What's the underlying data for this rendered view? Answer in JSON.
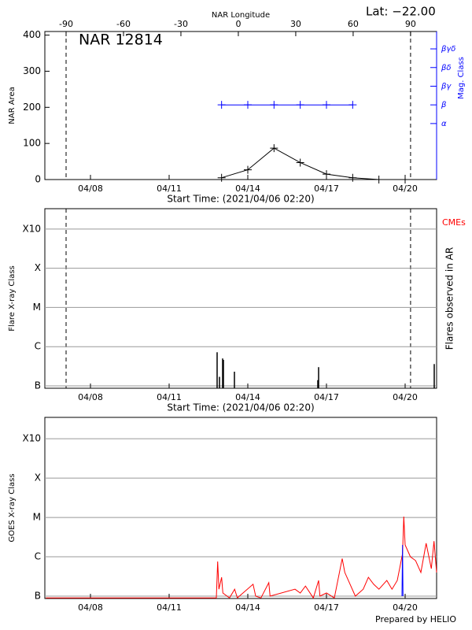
{
  "chart_data": [
    {
      "type": "line",
      "title": "NAR 12814",
      "annotation": "Lat: −22.00",
      "x_label": "Start Time: (2021/04/06 02:20)",
      "y_label": "NAR Area",
      "x2_label": "NAR Longitude",
      "y2_label": "Mag. Class",
      "xlim": [
        6.26,
        21.2
      ],
      "xticks": [
        {
          "value": 8,
          "label": "04/08"
        },
        {
          "value": 11,
          "label": "04/11"
        },
        {
          "value": 14,
          "label": "04/14"
        },
        {
          "value": 17,
          "label": "04/17"
        },
        {
          "value": 20,
          "label": "04/20"
        }
      ],
      "x2lim": [
        -101.1,
        103.6
      ],
      "x2ticks": [
        -90,
        -60,
        -30,
        0,
        30,
        60,
        90
      ],
      "ylim": [
        0,
        410
      ],
      "yticks": [
        0,
        100,
        200,
        300,
        400
      ],
      "y2lim": [
        -2,
        5.93
      ],
      "y2ticks": [
        {
          "value": 1,
          "label": "α"
        },
        {
          "value": 2,
          "label": "β"
        },
        {
          "value": 3,
          "label": "βγ"
        },
        {
          "value": 4,
          "label": "βδ"
        },
        {
          "value": 5,
          "label": "βγδ"
        }
      ],
      "series": [
        {
          "color": "#000000",
          "marker": "plus",
          "x": [
            13,
            14,
            15,
            16,
            17,
            18,
            19,
            20
          ],
          "values": [
            5,
            27,
            87,
            47,
            15,
            5,
            0,
            0
          ]
        },
        {
          "color": "#0000ff",
          "marker": "plus",
          "axis": "y2",
          "x": [
            13,
            14,
            15,
            16,
            17,
            18
          ],
          "values": [
            2,
            2,
            2,
            2,
            2,
            2
          ]
        }
      ]
    },
    {
      "type": "bar",
      "x_label": "Start Time: (2021/04/06 02:20)",
      "y_label": "Flare X-ray Class",
      "y2_label": "Flares observed in AR",
      "annotation": "CMEs",
      "annotation_color": "#ff0000",
      "log": true,
      "grid": true,
      "xlim": [
        6.26,
        21.2
      ],
      "xticks": [
        {
          "value": 8,
          "label": "04/08"
        },
        {
          "value": 11,
          "label": "04/11"
        },
        {
          "value": 14,
          "label": "04/14"
        },
        {
          "value": 17,
          "label": "04/17"
        },
        {
          "value": 20,
          "label": "04/20"
        }
      ],
      "ylim": [
        8.7e-08,
        0.0033
      ],
      "yticks": [
        {
          "value": 1e-07,
          "label": "B"
        },
        {
          "value": 1e-06,
          "label": "C"
        },
        {
          "value": 1e-05,
          "label": "M"
        },
        {
          "value": 0.0001,
          "label": "X"
        },
        {
          "value": 0.001,
          "label": "X10"
        }
      ],
      "color": "#000000",
      "x": [
        12.83,
        12.92,
        13.04,
        13.07,
        13.49,
        16.67,
        16.7,
        21.11
      ],
      "values": [
        7.2e-07,
        1.7e-07,
        5e-07,
        4.6e-07,
        2.3e-07,
        1.4e-07,
        3e-07,
        3.6e-07
      ]
    },
    {
      "type": "line",
      "y_label": "GOES X-ray Class",
      "log": true,
      "grid": true,
      "xlim": [
        6.26,
        21.2
      ],
      "xticks": [
        {
          "value": 8,
          "label": "04/08"
        },
        {
          "value": 11,
          "label": "04/11"
        },
        {
          "value": 14,
          "label": "04/14"
        },
        {
          "value": 17,
          "label": "04/17"
        },
        {
          "value": 20,
          "label": "04/20"
        }
      ],
      "ylim": [
        8.7e-08,
        0.0035
      ],
      "yticks": [
        {
          "value": 1e-07,
          "label": "B"
        },
        {
          "value": 1e-06,
          "label": "C"
        },
        {
          "value": 1e-05,
          "label": "M"
        },
        {
          "value": 0.0001,
          "label": "X"
        },
        {
          "value": 0.001,
          "label": "X10"
        }
      ],
      "series": [
        {
          "color": "#ff0000",
          "x": [
            6.3,
            12.8,
            12.85,
            12.9,
            13.0,
            13.05,
            13.3,
            13.5,
            13.6,
            14.2,
            14.3,
            14.5,
            14.8,
            14.85,
            15.8,
            16.0,
            16.2,
            16.5,
            16.7,
            16.75,
            17.0,
            17.3,
            17.6,
            17.7,
            17.9,
            18.1,
            18.4,
            18.6,
            18.8,
            19.0,
            19.3,
            19.5,
            19.7,
            19.9,
            19.95,
            20.0,
            20.2,
            20.4,
            20.6,
            20.8,
            21.0,
            21.1,
            21.2
          ],
          "values": [
            9e-08,
            9e-08,
            7.6e-07,
            1.5e-07,
            3e-07,
            1.2e-07,
            9e-08,
            1.5e-07,
            9e-08,
            2e-07,
            1e-07,
            9e-08,
            2.2e-07,
            1e-07,
            1.5e-07,
            1.2e-07,
            1.8e-07,
            9e-08,
            2.5e-07,
            1e-07,
            1.2e-07,
            9e-08,
            9e-07,
            4e-07,
            2e-07,
            1e-07,
            1.5e-07,
            3e-07,
            2e-07,
            1.5e-07,
            2.5e-07,
            1.5e-07,
            2.5e-07,
            1.2e-06,
            1.05e-05,
            2e-06,
            1e-06,
            8e-07,
            4e-07,
            2.2e-06,
            5e-07,
            2.5e-06,
            4e-07
          ]
        },
        {
          "color": "#0000ff",
          "x": [
            19.88,
            19.9,
            19.92
          ],
          "values": [
            1e-07,
            2e-06,
            1e-07
          ]
        }
      ]
    }
  ],
  "footer": "Prepared by HELIO"
}
